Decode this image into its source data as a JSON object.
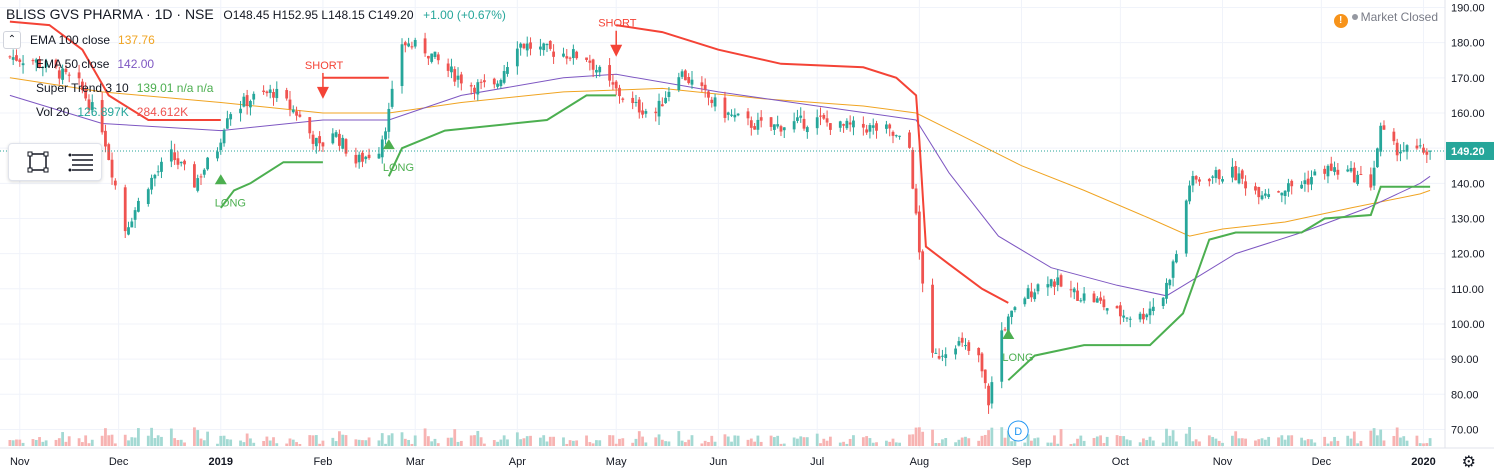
{
  "header": {
    "symbol": "BLISS GVS PHARMA · 1D · NSE",
    "ohlc": "O148.45  H152.95  L148.15  C149.20",
    "change": "+1.00 (+0.67%)"
  },
  "legend": [
    {
      "label": "EMA 100 close",
      "value": "137.76",
      "color": "#f0a422"
    },
    {
      "label": "EMA 50 close",
      "value": "142.00",
      "color": "#7e57c2"
    },
    {
      "label": "Super Trend 3 10",
      "value": "139.01  n/a  n/a",
      "color": "#4caf50"
    },
    {
      "label": "Vol 20",
      "value": "126.897K",
      "value2": "284.612K",
      "color": "#26a69a",
      "color2": "#ef5350"
    }
  ],
  "market_status": "Market Closed",
  "price_badge": "149.20",
  "event_marker": "D",
  "colors": {
    "up": "#26a69a",
    "down": "#ef5350",
    "ema100": "#f0a422",
    "ema50": "#7e57c2",
    "st_up": "#4caf50",
    "st_down": "#f44336"
  },
  "icons": {
    "collapse": "chevron-up-icon",
    "rect": "rectangle-tool-icon",
    "lines": "horizontal-lines-tool-icon",
    "settings": "gear-icon",
    "warning": "warning-icon"
  },
  "chart_data": {
    "type": "candlestick",
    "title": "BLISS GVS PHARMA · 1D · NSE",
    "ylim": [
      67,
      191
    ],
    "y_ticks": [
      70,
      80,
      90,
      100,
      110,
      120,
      130,
      140,
      150,
      160,
      170,
      180,
      190
    ],
    "x_ticks": [
      "Nov",
      "Dec",
      "2019",
      "Feb",
      "Mar",
      "Apr",
      "May",
      "Jun",
      "Jul",
      "Aug",
      "Sep",
      "Oct",
      "Nov",
      "Dec",
      "2020"
    ],
    "last_price": 149.2,
    "signals": [
      {
        "label": "LONG",
        "dir": "up",
        "time": "2019-01-01",
        "price": 142
      },
      {
        "label": "SHORT",
        "dir": "down",
        "time": "2019-02-01",
        "price": 164
      },
      {
        "label": "LONG",
        "dir": "up",
        "time": "2019-02-21",
        "price": 152
      },
      {
        "label": "SHORT",
        "dir": "down",
        "time": "2019-05-01",
        "price": 176
      },
      {
        "label": "LONG",
        "dir": "up",
        "time": "2019-08-28",
        "price": 98
      }
    ],
    "price_path": [
      [
        "2018-10-29",
        176
      ],
      [
        "2018-11-05",
        175
      ],
      [
        "2018-11-12",
        172
      ],
      [
        "2018-11-19",
        168
      ],
      [
        "2018-11-26",
        156
      ],
      [
        "2018-12-03",
        127
      ],
      [
        "2018-12-10",
        140
      ],
      [
        "2018-12-17",
        148
      ],
      [
        "2018-12-24",
        140
      ],
      [
        "2018-12-31",
        150
      ],
      [
        "2019-01-03",
        160
      ],
      [
        "2019-01-10",
        164
      ],
      [
        "2019-01-17",
        166
      ],
      [
        "2019-01-24",
        160
      ],
      [
        "2019-01-31",
        150
      ],
      [
        "2019-02-04",
        155
      ],
      [
        "2019-02-11",
        146
      ],
      [
        "2019-02-18",
        150
      ],
      [
        "2019-02-21",
        160
      ],
      [
        "2019-02-25",
        180
      ],
      [
        "2019-03-04",
        178
      ],
      [
        "2019-03-11",
        172
      ],
      [
        "2019-03-18",
        168
      ],
      [
        "2019-03-25",
        167
      ],
      [
        "2019-04-01",
        180
      ],
      [
        "2019-04-08",
        178
      ],
      [
        "2019-04-15",
        177
      ],
      [
        "2019-04-22",
        176
      ],
      [
        "2019-04-29",
        168
      ],
      [
        "2019-05-06",
        162
      ],
      [
        "2019-05-13",
        160
      ],
      [
        "2019-05-20",
        172
      ],
      [
        "2019-05-27",
        166
      ],
      [
        "2019-06-03",
        160
      ],
      [
        "2019-06-10",
        157
      ],
      [
        "2019-06-17",
        156
      ],
      [
        "2019-06-24",
        157
      ],
      [
        "2019-07-01",
        158
      ],
      [
        "2019-07-08",
        156
      ],
      [
        "2019-07-15",
        156
      ],
      [
        "2019-07-22",
        155
      ],
      [
        "2019-07-29",
        150
      ],
      [
        "2019-08-01",
        120
      ],
      [
        "2019-08-05",
        90
      ],
      [
        "2019-08-12",
        95
      ],
      [
        "2019-08-19",
        90
      ],
      [
        "2019-08-22",
        78
      ],
      [
        "2019-08-26",
        98
      ],
      [
        "2019-09-02",
        108
      ],
      [
        "2019-09-09",
        113
      ],
      [
        "2019-09-16",
        109
      ],
      [
        "2019-09-23",
        107
      ],
      [
        "2019-09-30",
        103
      ],
      [
        "2019-10-07",
        102
      ],
      [
        "2019-10-14",
        108
      ],
      [
        "2019-10-18",
        120
      ],
      [
        "2019-10-22",
        140
      ],
      [
        "2019-10-28",
        142
      ],
      [
        "2019-11-04",
        143
      ],
      [
        "2019-11-11",
        138
      ],
      [
        "2019-11-18",
        138
      ],
      [
        "2019-11-25",
        140
      ],
      [
        "2019-12-02",
        144
      ],
      [
        "2019-12-09",
        143
      ],
      [
        "2019-12-16",
        140
      ],
      [
        "2019-12-19",
        155
      ],
      [
        "2019-12-23",
        150
      ],
      [
        "2019-12-30",
        149
      ],
      [
        "2020-01-03",
        149.2
      ]
    ],
    "ema100": [
      [
        "2018-10-29",
        170
      ],
      [
        "2018-11-26",
        166
      ],
      [
        "2019-01-01",
        163
      ],
      [
        "2019-02-01",
        160
      ],
      [
        "2019-02-21",
        160
      ],
      [
        "2019-03-15",
        163
      ],
      [
        "2019-04-15",
        166
      ],
      [
        "2019-05-15",
        167
      ],
      [
        "2019-06-15",
        164
      ],
      [
        "2019-07-15",
        162
      ],
      [
        "2019-07-31",
        160
      ],
      [
        "2019-08-15",
        153
      ],
      [
        "2019-09-01",
        145
      ],
      [
        "2019-09-20",
        138
      ],
      [
        "2019-10-10",
        130
      ],
      [
        "2019-10-22",
        125
      ],
      [
        "2019-11-01",
        127
      ],
      [
        "2019-11-20",
        129
      ],
      [
        "2019-12-10",
        133
      ],
      [
        "2019-12-31",
        137
      ],
      [
        "2020-01-03",
        138
      ]
    ],
    "ema50": [
      [
        "2018-10-29",
        165
      ],
      [
        "2018-11-26",
        157
      ],
      [
        "2019-01-01",
        155
      ],
      [
        "2019-02-01",
        158
      ],
      [
        "2019-02-21",
        158
      ],
      [
        "2019-03-15",
        165
      ],
      [
        "2019-04-15",
        170
      ],
      [
        "2019-05-01",
        171
      ],
      [
        "2019-06-01",
        166
      ],
      [
        "2019-07-01",
        162
      ],
      [
        "2019-07-31",
        158
      ],
      [
        "2019-08-10",
        143
      ],
      [
        "2019-08-25",
        125
      ],
      [
        "2019-09-10",
        116
      ],
      [
        "2019-09-30",
        111
      ],
      [
        "2019-10-15",
        108
      ],
      [
        "2019-10-22",
        112
      ],
      [
        "2019-11-05",
        120
      ],
      [
        "2019-11-25",
        126
      ],
      [
        "2019-12-15",
        133
      ],
      [
        "2019-12-31",
        140
      ],
      [
        "2020-01-03",
        142
      ]
    ],
    "supertrend": [
      {
        "dir": "down",
        "points": [
          [
            "2018-10-29",
            186
          ],
          [
            "2018-11-10",
            185
          ],
          [
            "2018-11-20",
            178
          ],
          [
            "2018-11-28",
            165
          ],
          [
            "2018-12-10",
            158
          ],
          [
            "2019-01-01",
            158
          ]
        ]
      },
      {
        "dir": "up",
        "points": [
          [
            "2019-01-01",
            133
          ],
          [
            "2019-01-05",
            138
          ],
          [
            "2019-01-10",
            140
          ],
          [
            "2019-01-20",
            146
          ],
          [
            "2019-02-01",
            146
          ]
        ]
      },
      {
        "dir": "down",
        "points": [
          [
            "2019-02-01",
            170
          ],
          [
            "2019-02-21",
            170
          ]
        ]
      },
      {
        "dir": "up",
        "points": [
          [
            "2019-02-21",
            142
          ],
          [
            "2019-02-25",
            150
          ],
          [
            "2019-03-10",
            155
          ],
          [
            "2019-04-10",
            158
          ],
          [
            "2019-04-22",
            165
          ],
          [
            "2019-05-01",
            165
          ]
        ]
      },
      {
        "dir": "down",
        "points": [
          [
            "2019-05-01",
            185
          ],
          [
            "2019-05-15",
            183
          ],
          [
            "2019-06-01",
            178
          ],
          [
            "2019-06-20",
            174
          ],
          [
            "2019-07-15",
            173
          ],
          [
            "2019-07-25",
            170
          ],
          [
            "2019-07-31",
            165
          ],
          [
            "2019-08-01",
            152
          ],
          [
            "2019-08-03",
            122
          ],
          [
            "2019-08-10",
            117
          ],
          [
            "2019-08-20",
            110
          ],
          [
            "2019-08-28",
            106
          ]
        ]
      },
      {
        "dir": "up",
        "points": [
          [
            "2019-08-28",
            84
          ],
          [
            "2019-09-05",
            91
          ],
          [
            "2019-09-20",
            94
          ],
          [
            "2019-10-10",
            94
          ],
          [
            "2019-10-20",
            103
          ],
          [
            "2019-10-28",
            124
          ],
          [
            "2019-11-05",
            126
          ],
          [
            "2019-11-25",
            126
          ],
          [
            "2019-12-02",
            130
          ],
          [
            "2019-12-16",
            131
          ],
          [
            "2019-12-19",
            139
          ],
          [
            "2020-01-03",
            139
          ]
        ]
      }
    ]
  }
}
